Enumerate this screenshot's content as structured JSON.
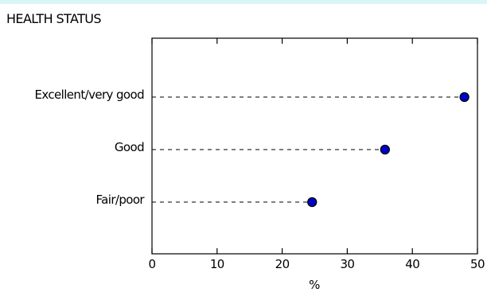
{
  "title": "HEALTH STATUS",
  "chart_data": {
    "type": "scatter",
    "title": "HEALTH STATUS",
    "categories": [
      "Excellent/very good",
      "Good",
      "Fair/poor"
    ],
    "values": [
      48,
      35.8,
      24.6
    ],
    "xlabel": "%",
    "ylabel": "",
    "xlim": [
      0,
      50
    ],
    "xticks": [
      0,
      10,
      20,
      30,
      40,
      50
    ],
    "grid": false,
    "point_color": "#0000cc"
  }
}
